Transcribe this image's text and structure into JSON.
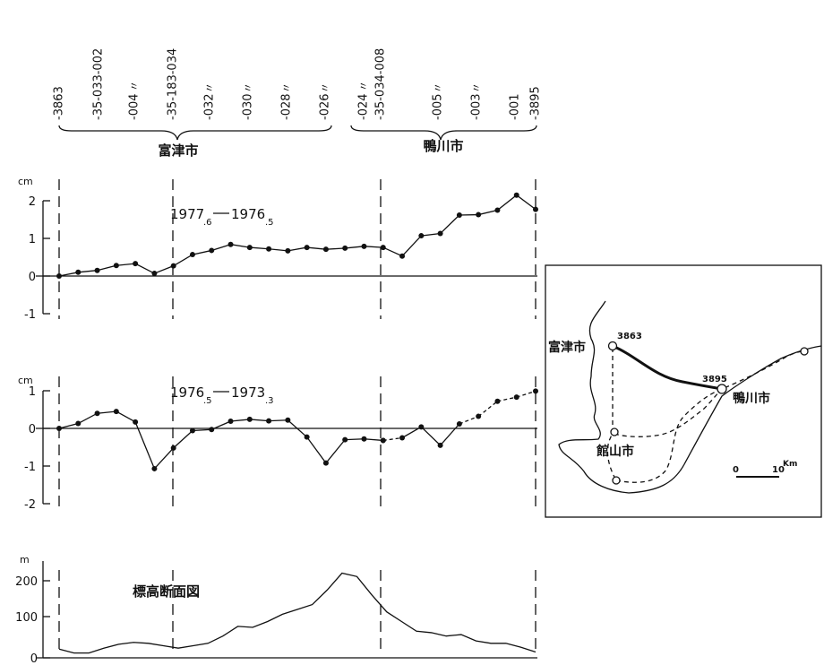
{
  "benchmarks": {
    "labels": [
      "-3863",
      "-35-033-002",
      "-004",
      "-35-183-034",
      "-032",
      "-030",
      "-028",
      "-026",
      "-024",
      "-35-034-008",
      "-005",
      "-003",
      "-001",
      "-3895"
    ],
    "ditto": [
      "〃",
      "〃",
      "〃",
      "〃",
      "〃",
      "〃",
      "〃",
      "〃"
    ],
    "group_left": "富津市",
    "group_right": "鴨川市"
  },
  "chart_data": [
    {
      "type": "line",
      "ylabel": "cm",
      "annotation": "1977.6 — 1976.5",
      "epoch_a": "1977",
      "epoch_a_sub": ".6",
      "epoch_b": "1976",
      "epoch_b_sub": ".5",
      "ylim": [
        -1,
        2
      ],
      "yticks": [
        "2",
        "1",
        "0",
        "-1"
      ],
      "series": [
        {
          "x": [
            0,
            1,
            2,
            3,
            4,
            5,
            6,
            7,
            8,
            9,
            10,
            11,
            12,
            13,
            14,
            15,
            16,
            17,
            18,
            19,
            20,
            21,
            22,
            23,
            24,
            25
          ],
          "y": [
            0,
            0.1,
            0.15,
            0.28,
            0.33,
            0.07,
            0.27,
            0.57,
            0.68,
            0.84,
            0.76,
            0.72,
            0.67,
            0.76,
            0.71,
            0.74,
            0.79,
            0.76,
            0.53,
            1.07,
            1.13,
            1.62,
            1.63,
            1.75,
            2.15,
            1.77
          ],
          "style": "solid"
        }
      ]
    },
    {
      "type": "line",
      "ylabel": "cm",
      "annotation": "1976.5 — 1973.3",
      "epoch_a": "1976",
      "epoch_a_sub": ".5",
      "epoch_b": "1973",
      "epoch_b_sub": ".3",
      "ylim": [
        -2,
        1
      ],
      "yticks": [
        "1",
        "0",
        "-1",
        "-2"
      ],
      "series": [
        {
          "x": [
            0,
            1,
            2,
            3,
            4,
            5,
            6,
            7,
            8,
            9,
            10,
            11,
            12,
            13,
            14,
            15,
            16,
            17
          ],
          "y": [
            0,
            0.13,
            0.4,
            0.45,
            0.17,
            -1.07,
            -0.52,
            -0.06,
            -0.03,
            0.19,
            0.24,
            0.2,
            0.22,
            -0.23,
            -0.92,
            -0.3,
            -0.28,
            -0.32
          ],
          "style": "solid"
        },
        {
          "x": [
            17,
            18,
            19,
            20,
            21,
            22,
            23,
            24,
            25
          ],
          "y": [
            -0.32,
            -0.25,
            0.04,
            -0.45,
            0.12,
            0.32,
            0.72,
            0.83,
            0.99
          ],
          "style": "mixed"
        }
      ]
    },
    {
      "type": "area",
      "title": "標高断面図",
      "ylabel": "m",
      "ylim": [
        0,
        200
      ],
      "yticks": [
        "200",
        "100",
        "0"
      ],
      "profile": [
        18,
        10,
        10,
        20,
        28,
        32,
        30,
        25,
        20,
        25,
        30,
        45,
        65,
        63,
        75,
        90,
        100,
        110,
        140,
        175,
        168,
        130,
        95,
        75,
        55,
        52,
        45,
        48,
        35,
        30,
        30,
        22,
        12
      ]
    }
  ],
  "inset_map": {
    "points": [
      "3863",
      "3895"
    ],
    "cities": [
      "富津市",
      "鴨川市",
      "館山市"
    ],
    "scale_start": "0",
    "scale_end": "10",
    "scale_unit": "Km"
  }
}
